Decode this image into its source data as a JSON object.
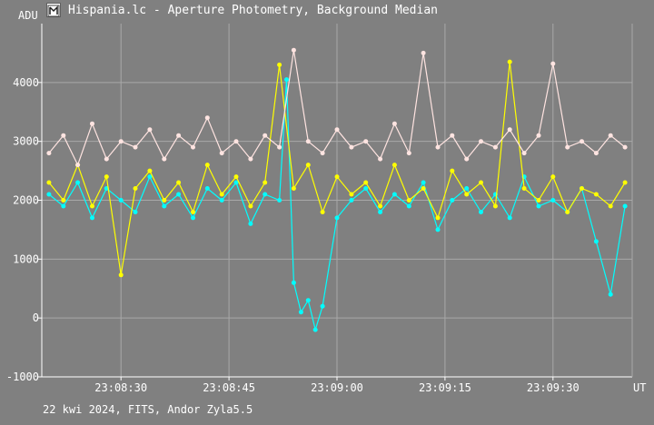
{
  "window": {
    "title": "Hispania.lc - Aperture Photometry, Background Median"
  },
  "footer": {
    "caption": "22 kwi 2024, FITS, Andor Zyla5.5"
  },
  "colors": {
    "background": "#808080",
    "grid": "#a8a8a8",
    "axis": "#ffffff",
    "series_cyan": "#00ffff",
    "series_yellow": "#ffff00",
    "series_pink": "#ffe4e1"
  },
  "chart_data": {
    "type": "line",
    "title": "",
    "ylabel": "ADU",
    "xlabel": "UT",
    "ylim": [
      -1000,
      5000
    ],
    "yticks": [
      4000,
      3000,
      2000,
      1000,
      0,
      -1000
    ],
    "xlim": [
      "23:08:19",
      "23:09:41"
    ],
    "xticks": [
      "23:08:30",
      "23:08:45",
      "23:09:00",
      "23:09:15",
      "23:09:30"
    ],
    "grid": true,
    "markers": true,
    "series": [
      {
        "color": "#00ffff",
        "x": [
          "23:08:20",
          "23:08:22",
          "23:08:24",
          "23:08:26",
          "23:08:28",
          "23:08:30",
          "23:08:32",
          "23:08:34",
          "23:08:36",
          "23:08:38",
          "23:08:40",
          "23:08:42",
          "23:08:44",
          "23:08:46",
          "23:08:48",
          "23:08:50",
          "23:08:52",
          "23:08:53",
          "23:08:54",
          "23:08:55",
          "23:08:56",
          "23:08:57",
          "23:08:58",
          "23:09:00",
          "23:09:02",
          "23:09:04",
          "23:09:06",
          "23:09:08",
          "23:09:10",
          "23:09:12",
          "23:09:14",
          "23:09:16",
          "23:09:18",
          "23:09:20",
          "23:09:22",
          "23:09:24",
          "23:09:26",
          "23:09:28",
          "23:09:30",
          "23:09:32",
          "23:09:34",
          "23:09:36",
          "23:09:38",
          "23:09:40"
        ],
        "y": [
          2100,
          1900,
          2300,
          1700,
          2200,
          2000,
          1800,
          2400,
          1900,
          2100,
          1700,
          2200,
          2000,
          2300,
          1600,
          2100,
          2000,
          4050,
          600,
          100,
          300,
          -200,
          200,
          1700,
          2000,
          2200,
          1800,
          2100,
          1900,
          2300,
          1500,
          2000,
          2200,
          1800,
          2100,
          1700,
          2400,
          1900,
          2000,
          1800,
          2200,
          1300,
          400,
          1900
        ]
      },
      {
        "color": "#ffff00",
        "x": [
          "23:08:20",
          "23:08:22",
          "23:08:24",
          "23:08:26",
          "23:08:28",
          "23:08:30",
          "23:08:32",
          "23:08:34",
          "23:08:36",
          "23:08:38",
          "23:08:40",
          "23:08:42",
          "23:08:44",
          "23:08:46",
          "23:08:48",
          "23:08:50",
          "23:08:52",
          "23:08:54",
          "23:08:56",
          "23:08:58",
          "23:09:00",
          "23:09:02",
          "23:09:04",
          "23:09:06",
          "23:09:08",
          "23:09:10",
          "23:09:12",
          "23:09:14",
          "23:09:16",
          "23:09:18",
          "23:09:20",
          "23:09:22",
          "23:09:24",
          "23:09:26",
          "23:09:28",
          "23:09:30",
          "23:09:32",
          "23:09:34",
          "23:09:36",
          "23:09:38",
          "23:09:40"
        ],
        "y": [
          2300,
          2000,
          2600,
          1900,
          2400,
          730,
          2200,
          2500,
          2000,
          2300,
          1800,
          2600,
          2100,
          2400,
          1900,
          2300,
          4300,
          2200,
          2600,
          1800,
          2400,
          2100,
          2300,
          1900,
          2600,
          2000,
          2200,
          1700,
          2500,
          2100,
          2300,
          1900,
          4350,
          2200,
          2000,
          2400,
          1800,
          2200,
          2100,
          1900,
          2300
        ]
      },
      {
        "color": "#ffe4e1",
        "x": [
          "23:08:20",
          "23:08:22",
          "23:08:24",
          "23:08:26",
          "23:08:28",
          "23:08:30",
          "23:08:32",
          "23:08:34",
          "23:08:36",
          "23:08:38",
          "23:08:40",
          "23:08:42",
          "23:08:44",
          "23:08:46",
          "23:08:48",
          "23:08:50",
          "23:08:52",
          "23:08:54",
          "23:08:56",
          "23:08:58",
          "23:09:00",
          "23:09:02",
          "23:09:04",
          "23:09:06",
          "23:09:08",
          "23:09:10",
          "23:09:12",
          "23:09:14",
          "23:09:16",
          "23:09:18",
          "23:09:20",
          "23:09:22",
          "23:09:24",
          "23:09:26",
          "23:09:28",
          "23:09:30",
          "23:09:32",
          "23:09:34",
          "23:09:36",
          "23:09:38",
          "23:09:40"
        ],
        "y": [
          2800,
          3100,
          2600,
          3300,
          2700,
          3000,
          2900,
          3200,
          2700,
          3100,
          2900,
          3400,
          2800,
          3000,
          2700,
          3100,
          2900,
          4550,
          3000,
          2800,
          3200,
          2900,
          3000,
          2700,
          3300,
          2800,
          4500,
          2900,
          3100,
          2700,
          3000,
          2900,
          3200,
          2800,
          3100,
          4320,
          2900,
          3000,
          2800,
          3100,
          2900
        ]
      }
    ]
  }
}
